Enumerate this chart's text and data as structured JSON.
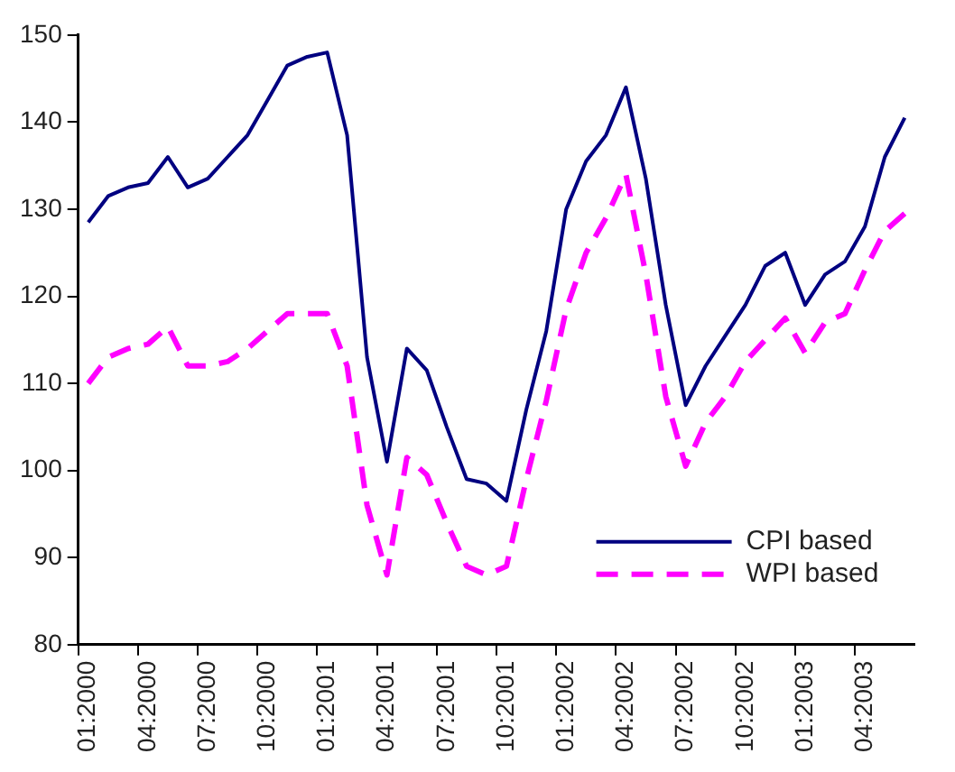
{
  "chart_data": {
    "type": "line",
    "categories": [
      "01:2000",
      null,
      null,
      "04:2000",
      null,
      null,
      "07:2000",
      null,
      null,
      "10:2000",
      null,
      null,
      "01:2001",
      null,
      null,
      "04:2001",
      null,
      null,
      "07:2001",
      null,
      null,
      "10:2001",
      null,
      null,
      "01:2002",
      null,
      null,
      "04:2002",
      null,
      null,
      "07:2002",
      null,
      null,
      "10:2002",
      null,
      null,
      "01:2003",
      null,
      null,
      "04:2003",
      null,
      null
    ],
    "series": [
      {
        "name": "CPI based",
        "color": "#000080",
        "line_style": "solid",
        "values": [
          128.5,
          131.5,
          132.5,
          133,
          136,
          132.5,
          133.5,
          136,
          138.5,
          142.5,
          146.5,
          147.5,
          148,
          138.5,
          113,
          101,
          114,
          111.5,
          105,
          99,
          98.5,
          96.5,
          107,
          116,
          130,
          135.5,
          138.5,
          144,
          133.5,
          119,
          107.5,
          112,
          115.5,
          119,
          123.5,
          125,
          119,
          122.5,
          124,
          128,
          136,
          140.5
        ]
      },
      {
        "name": "WPI based",
        "color": "#ff00ff",
        "line_style": "dashed",
        "values": [
          110,
          113,
          114,
          114.5,
          116.5,
          112,
          112,
          112.5,
          114,
          116,
          118,
          118,
          118,
          112,
          96,
          88,
          101.5,
          99.5,
          94,
          89,
          88,
          89,
          99,
          108,
          118.5,
          125,
          129,
          134,
          122.5,
          108.5,
          100.5,
          105.5,
          108.5,
          112.5,
          115,
          117.5,
          113.5,
          117,
          118,
          123,
          127.5,
          129.5
        ]
      }
    ],
    "ylim": [
      80,
      150
    ],
    "yticks": [
      80,
      90,
      100,
      110,
      120,
      130,
      140,
      150
    ],
    "grid": false,
    "legend": "bottom right",
    "marker": "none"
  }
}
